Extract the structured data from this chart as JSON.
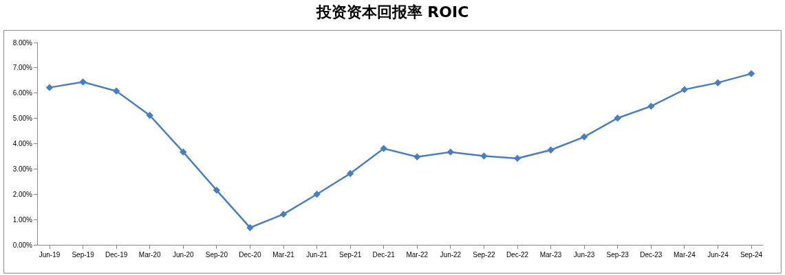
{
  "chart_data": {
    "type": "line",
    "title": "投资资本回报率 ROIC",
    "categories": [
      "Jun-19",
      "Sep-19",
      "Dec-19",
      "Mar-20",
      "Jun-20",
      "Sep-20",
      "Dec-20",
      "Mar-21",
      "Jun-21",
      "Sep-21",
      "Dec-21",
      "Mar-22",
      "Jun-22",
      "Sep-22",
      "Dec-22",
      "Mar-23",
      "Jun-23",
      "Sep-23",
      "Dec-23",
      "Mar-24",
      "Jun-24",
      "Sep-24"
    ],
    "series": [
      {
        "color": "#4a7ebb",
        "values": [
          6.22,
          6.44,
          6.08,
          5.12,
          3.67,
          2.16,
          0.68,
          1.21,
          2.0,
          2.82,
          3.81,
          3.48,
          3.67,
          3.51,
          3.42,
          3.75,
          4.27,
          5.01,
          5.48,
          6.14,
          6.41,
          6.77
        ]
      }
    ],
    "ylim": [
      0,
      8
    ],
    "yticks": [
      {
        "value": 0,
        "label": "0.00%"
      },
      {
        "value": 1,
        "label": "1.00%"
      },
      {
        "value": 2,
        "label": "2.00%"
      },
      {
        "value": 3,
        "label": "3.00%"
      },
      {
        "value": 4,
        "label": "4.00%"
      },
      {
        "value": 5,
        "label": "5.00%"
      },
      {
        "value": 6,
        "label": "6.00%"
      },
      {
        "value": 7,
        "label": "7.00%"
      },
      {
        "value": 8,
        "label": "8.00%"
      }
    ],
    "grid": false,
    "legend": false,
    "marker": "diamond",
    "line_style": "solid"
  }
}
